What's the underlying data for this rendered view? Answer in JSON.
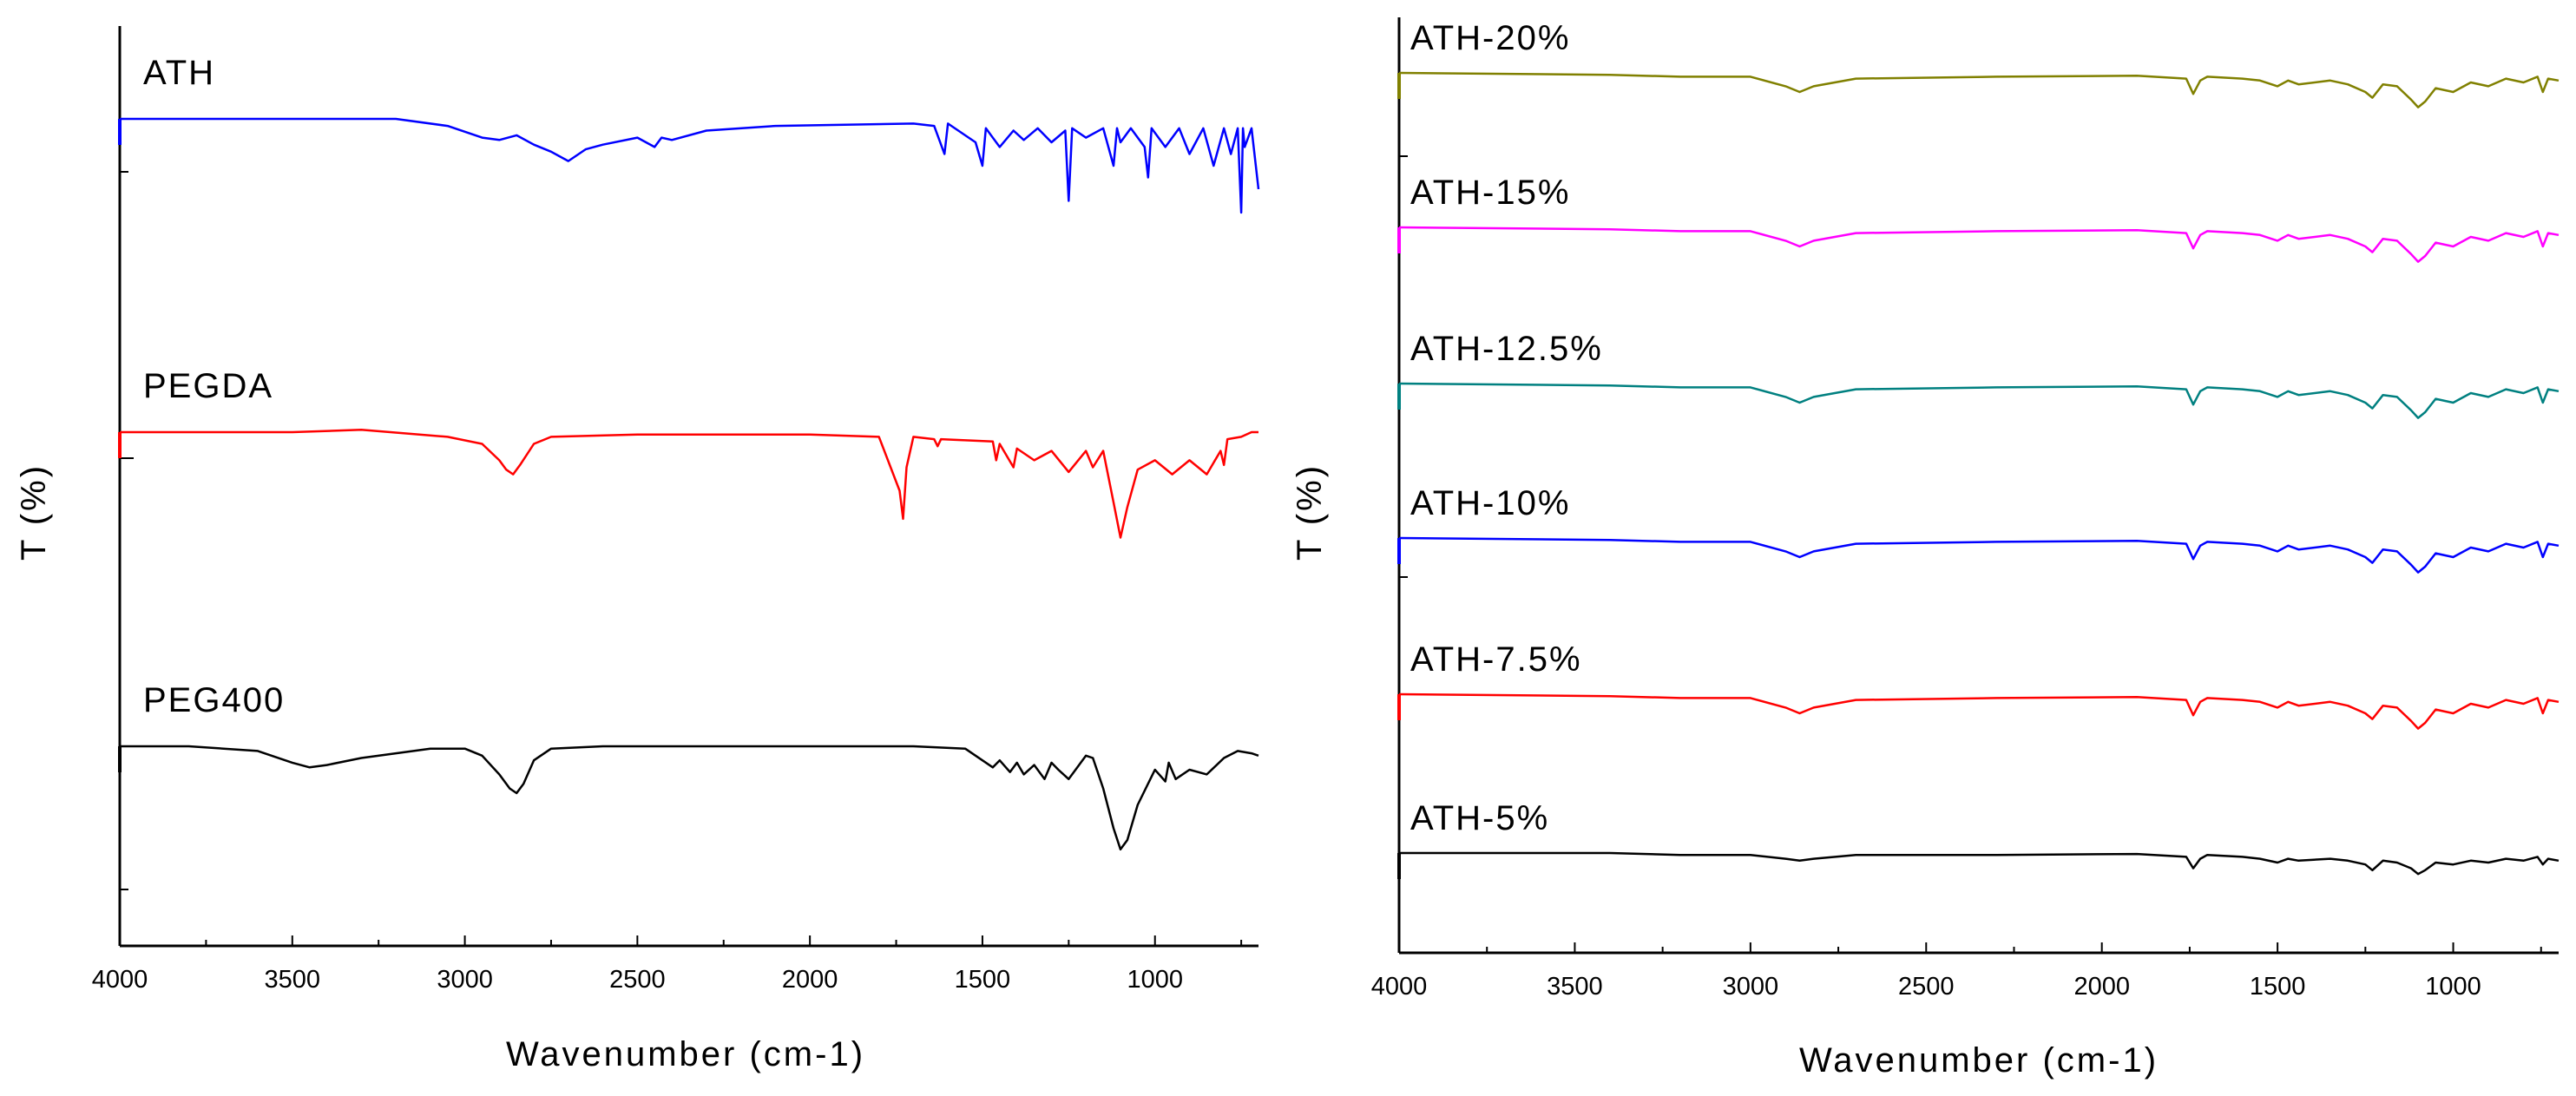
{
  "chart_data": [
    {
      "type": "line",
      "xlabel": "Wavenumber (cm-1)",
      "ylabel": "T (%)",
      "xlim": [
        4000,
        700
      ],
      "x_reversed": true,
      "xticks": [
        4000,
        3500,
        3000,
        2500,
        2000,
        1500,
        1000
      ],
      "y_tick_labels": false,
      "series": [
        {
          "name": "ATH",
          "color": "#0000ff",
          "x": [
            4000,
            3500,
            3200,
            3050,
            2950,
            2900,
            2850,
            2800,
            2750,
            2700,
            2650,
            2600,
            2500,
            2450,
            2430,
            2400,
            2300,
            2100,
            1900,
            1700,
            1640,
            1610,
            1600,
            1590,
            1520,
            1500,
            1490,
            1450,
            1410,
            1380,
            1340,
            1300,
            1260,
            1250,
            1240,
            1200,
            1150,
            1120,
            1110,
            1100,
            1070,
            1030,
            1020,
            1010,
            970,
            930,
            900,
            860,
            830,
            800,
            780,
            760,
            750,
            745,
            740,
            720,
            700
          ],
          "values": [
            100,
            100,
            100,
            97,
            92,
            91,
            93,
            89,
            86,
            82,
            87,
            89,
            92,
            88,
            92,
            91,
            95,
            97,
            97.5,
            98,
            97,
            85,
            98,
            97,
            90,
            80,
            96,
            88,
            95,
            91,
            96,
            90,
            95,
            65,
            96,
            92,
            96,
            80,
            96,
            90,
            96,
            88,
            75,
            96,
            88,
            96,
            85,
            96,
            80,
            96,
            85,
            96,
            60,
            96,
            88,
            96,
            70
          ]
        },
        {
          "name": "PEGDA",
          "color": "#ff0000",
          "x": [
            4000,
            3500,
            3300,
            3050,
            2950,
            2900,
            2880,
            2860,
            2840,
            2800,
            2750,
            2500,
            2000,
            1800,
            1740,
            1730,
            1720,
            1700,
            1640,
            1630,
            1620,
            1470,
            1460,
            1450,
            1410,
            1400,
            1350,
            1300,
            1250,
            1200,
            1180,
            1150,
            1120,
            1100,
            1080,
            1050,
            1000,
            950,
            900,
            850,
            810,
            800,
            790,
            750,
            720,
            700
          ],
          "values": [
            100,
            100,
            101,
            98,
            95,
            88,
            84,
            82,
            86,
            95,
            98,
            99,
            99,
            98,
            75,
            63,
            85,
            98,
            97,
            94,
            97,
            96,
            88,
            95,
            85,
            93,
            88,
            92,
            83,
            92,
            85,
            92,
            70,
            55,
            68,
            84,
            88,
            82,
            88,
            82,
            92,
            86,
            97,
            98,
            100,
            100
          ]
        },
        {
          "name": "PEG400",
          "color": "#000000",
          "x": [
            4000,
            3800,
            3600,
            3500,
            3450,
            3400,
            3300,
            3200,
            3100,
            3000,
            2950,
            2900,
            2870,
            2850,
            2830,
            2800,
            2750,
            2600,
            2000,
            1700,
            1550,
            1470,
            1450,
            1420,
            1400,
            1380,
            1350,
            1320,
            1300,
            1280,
            1250,
            1200,
            1180,
            1150,
            1120,
            1100,
            1080,
            1050,
            1000,
            970,
            960,
            940,
            900,
            850,
            800,
            760,
            720,
            700
          ],
          "values": [
            100,
            100,
            98,
            93,
            91,
            92,
            95,
            97,
            99,
            99,
            96,
            88,
            82,
            80,
            84,
            94,
            99,
            100,
            100,
            100,
            99,
            91,
            94,
            89,
            93,
            88,
            92,
            86,
            93,
            90,
            86,
            96,
            95,
            82,
            65,
            56,
            60,
            75,
            90,
            85,
            93,
            86,
            90,
            88,
            95,
            98,
            97,
            96
          ]
        }
      ]
    },
    {
      "type": "line",
      "xlabel": "Wavenumber (cm-1)",
      "ylabel": "T (%)",
      "xlim": [
        4000,
        700
      ],
      "x_reversed": true,
      "xticks": [
        4000,
        3500,
        3000,
        2500,
        2000,
        1500,
        1000
      ],
      "y_tick_labels": false,
      "series": [
        {
          "name": "ATH-20%",
          "color": "#808000",
          "x": [
            4000,
            3400,
            3200,
            3000,
            2900,
            2860,
            2820,
            2700,
            2300,
            1900,
            1760,
            1740,
            1720,
            1700,
            1600,
            1550,
            1500,
            1470,
            1440,
            1350,
            1300,
            1250,
            1230,
            1200,
            1160,
            1120,
            1100,
            1080,
            1050,
            1000,
            950,
            900,
            850,
            800,
            760,
            745,
            730,
            700
          ],
          "values": [
            100,
            99,
            98,
            98,
            93,
            90,
            93,
            97,
            98,
            98.5,
            97,
            89,
            96,
            98,
            97,
            96,
            93,
            96,
            94,
            96,
            94,
            90,
            87,
            94,
            93,
            86,
            82,
            85,
            92,
            90,
            95,
            93,
            97,
            95,
            98,
            90,
            97,
            96
          ]
        },
        {
          "name": "ATH-15%",
          "color": "#ff00ff",
          "x": [
            4000,
            3400,
            3200,
            3000,
            2900,
            2860,
            2820,
            2700,
            2300,
            1900,
            1760,
            1740,
            1720,
            1700,
            1600,
            1550,
            1500,
            1470,
            1440,
            1350,
            1300,
            1250,
            1230,
            1200,
            1160,
            1120,
            1100,
            1080,
            1050,
            1000,
            950,
            900,
            850,
            800,
            760,
            745,
            730,
            700
          ],
          "values": [
            100,
            99,
            98,
            98,
            93,
            90,
            93,
            97,
            98,
            98.5,
            97,
            89,
            96,
            98,
            97,
            96,
            93,
            96,
            94,
            96,
            94,
            90,
            87,
            94,
            93,
            86,
            82,
            85,
            92,
            90,
            95,
            93,
            97,
            95,
            98,
            90,
            97,
            96
          ]
        },
        {
          "name": "ATH-12.5%",
          "color": "#008080",
          "x": [
            4000,
            3400,
            3200,
            3000,
            2900,
            2860,
            2820,
            2700,
            2300,
            1900,
            1760,
            1740,
            1720,
            1700,
            1600,
            1550,
            1500,
            1470,
            1440,
            1350,
            1300,
            1250,
            1230,
            1200,
            1160,
            1120,
            1100,
            1080,
            1050,
            1000,
            950,
            900,
            850,
            800,
            760,
            745,
            730,
            700
          ],
          "values": [
            100,
            99,
            98,
            98,
            93,
            90,
            93,
            97,
            98,
            98.5,
            97,
            89,
            96,
            98,
            97,
            96,
            93,
            96,
            94,
            96,
            94,
            90,
            87,
            94,
            93,
            86,
            82,
            85,
            92,
            90,
            95,
            93,
            97,
            95,
            98,
            90,
            97,
            96
          ]
        },
        {
          "name": "ATH-10%",
          "color": "#0000ff",
          "x": [
            4000,
            3400,
            3200,
            3000,
            2900,
            2860,
            2820,
            2700,
            2300,
            1900,
            1760,
            1740,
            1720,
            1700,
            1600,
            1550,
            1500,
            1470,
            1440,
            1350,
            1300,
            1250,
            1230,
            1200,
            1160,
            1120,
            1100,
            1080,
            1050,
            1000,
            950,
            900,
            850,
            800,
            760,
            745,
            730,
            700
          ],
          "values": [
            100,
            99,
            98,
            98,
            93,
            90,
            93,
            97,
            98,
            98.5,
            97,
            89,
            96,
            98,
            97,
            96,
            93,
            96,
            94,
            96,
            94,
            90,
            87,
            94,
            93,
            86,
            82,
            85,
            92,
            90,
            95,
            93,
            97,
            95,
            98,
            90,
            97,
            96
          ]
        },
        {
          "name": "ATH-7.5%",
          "color": "#ff0000",
          "x": [
            4000,
            3400,
            3200,
            3000,
            2900,
            2860,
            2820,
            2700,
            2300,
            1900,
            1760,
            1740,
            1720,
            1700,
            1600,
            1550,
            1500,
            1470,
            1440,
            1350,
            1300,
            1250,
            1230,
            1200,
            1160,
            1120,
            1100,
            1080,
            1050,
            1000,
            950,
            900,
            850,
            800,
            760,
            745,
            730,
            700
          ],
          "values": [
            100,
            99,
            98,
            98,
            93,
            90,
            93,
            97,
            98,
            98.5,
            97,
            89,
            96,
            98,
            97,
            96,
            93,
            96,
            94,
            96,
            94,
            90,
            87,
            94,
            93,
            86,
            82,
            85,
            92,
            90,
            95,
            93,
            97,
            95,
            98,
            90,
            97,
            96
          ]
        },
        {
          "name": "ATH-5%",
          "color": "#000000",
          "x": [
            4000,
            3400,
            3200,
            3000,
            2900,
            2860,
            2820,
            2700,
            2300,
            1900,
            1760,
            1740,
            1720,
            1700,
            1600,
            1550,
            1500,
            1470,
            1440,
            1350,
            1300,
            1250,
            1230,
            1200,
            1160,
            1120,
            1100,
            1080,
            1050,
            1000,
            950,
            900,
            850,
            800,
            760,
            745,
            730,
            700
          ],
          "values": [
            100,
            100,
            99,
            99,
            97,
            96,
            97,
            99,
            99,
            99.5,
            98,
            92,
            97,
            99,
            98,
            97,
            95,
            97,
            96,
            97,
            96,
            94,
            91,
            96,
            95,
            92,
            89,
            91,
            95,
            94,
            96,
            95,
            97,
            96,
            98,
            94,
            97,
            96
          ]
        }
      ]
    }
  ]
}
